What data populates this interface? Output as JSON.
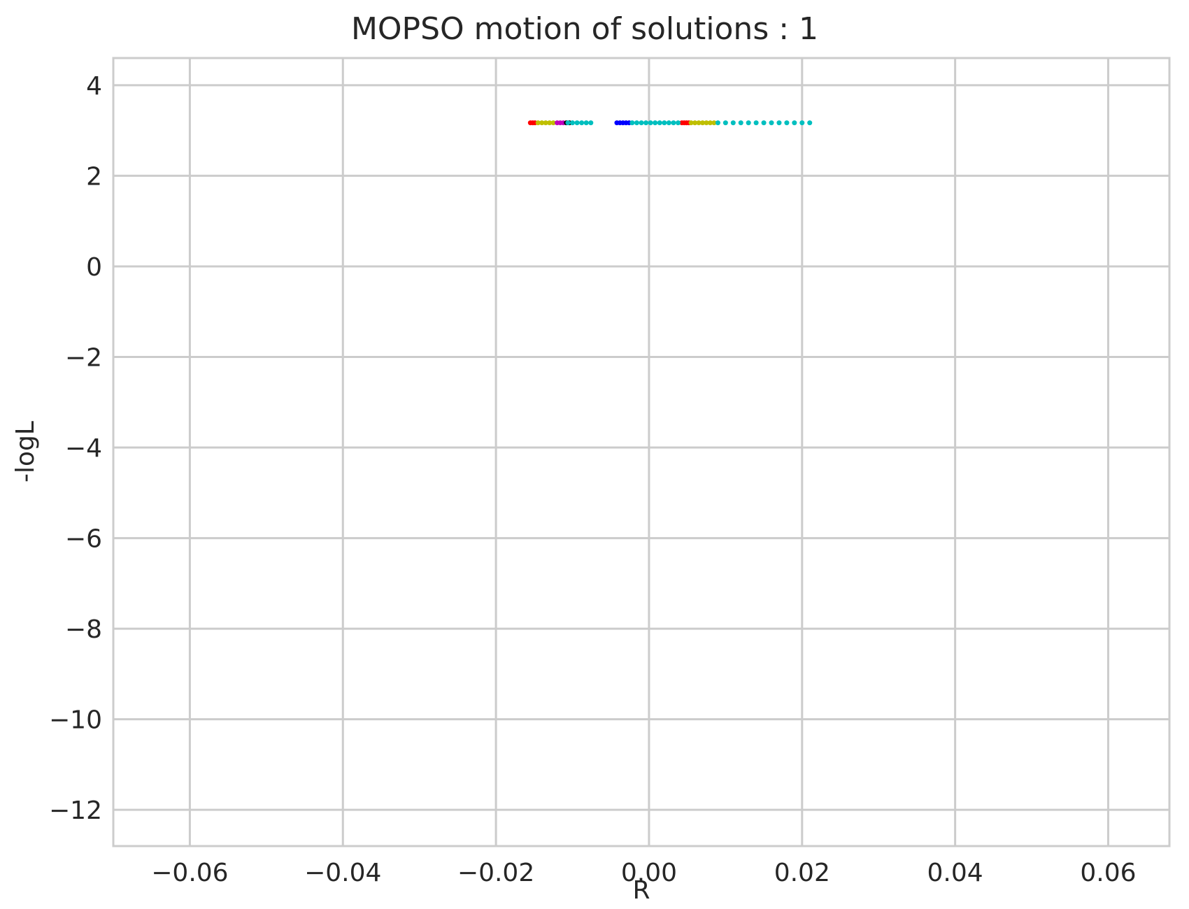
{
  "chart_data": {
    "type": "scatter",
    "title": "MOPSO motion of solutions : 1",
    "xlabel": "R",
    "ylabel": "-logL",
    "xlim": [
      -0.07,
      0.068
    ],
    "ylim": [
      -12.8,
      4.6
    ],
    "grid": true,
    "legend": "none",
    "x_ticks": [
      -0.06,
      -0.04,
      -0.02,
      0.0,
      0.02,
      0.04,
      0.06
    ],
    "x_tick_labels": [
      "−0.06",
      "−0.04",
      "−0.02",
      "0.00",
      "0.02",
      "0.04",
      "0.06"
    ],
    "y_ticks": [
      4,
      2,
      0,
      -2,
      -4,
      -6,
      -8,
      -10,
      -12
    ],
    "y_tick_labels": [
      "4",
      "2",
      "0",
      "−2",
      "−4",
      "−6",
      "−8",
      "−10",
      "−12"
    ],
    "series": [
      {
        "color": "#ff0000",
        "x": [
          -0.0155,
          -0.0152,
          -0.0149,
          0.0043,
          0.0046,
          0.0049,
          0.0052
        ],
        "y": [
          3.17,
          3.17,
          3.17,
          3.17,
          3.17,
          3.17,
          3.17
        ]
      },
      {
        "color": "#bfbf00",
        "x": [
          -0.0145,
          -0.014,
          -0.0135,
          -0.013,
          -0.0125,
          0.0055,
          0.006,
          0.0065,
          0.007,
          0.0075,
          0.008,
          0.0085
        ],
        "y": [
          3.17,
          3.17,
          3.17,
          3.17,
          3.17,
          3.17,
          3.17,
          3.17,
          3.17,
          3.17,
          3.17,
          3.17
        ]
      },
      {
        "color": "#bf00bf",
        "x": [
          -0.012,
          -0.0116,
          -0.0112
        ],
        "y": [
          3.17,
          3.17,
          3.17
        ]
      },
      {
        "color": "#000000",
        "x": [
          -0.0108,
          -0.0104
        ],
        "y": [
          3.17,
          3.17
        ]
      },
      {
        "color": "#0000ff",
        "x": [
          -0.0042,
          -0.0038,
          -0.0034,
          -0.003,
          -0.0026
        ],
        "y": [
          3.17,
          3.17,
          3.17,
          3.17,
          3.17
        ]
      },
      {
        "color": "#00bfbf",
        "x": [
          -0.0106,
          -0.01,
          -0.0094,
          -0.0088,
          -0.0082,
          -0.0076,
          -0.0022,
          -0.0016,
          -0.001,
          -0.0004,
          0.0002,
          0.0008,
          0.0014,
          0.002,
          0.0026,
          0.0032,
          0.0038,
          0.009,
          0.01,
          0.011,
          0.012,
          0.013,
          0.014,
          0.015,
          0.016,
          0.017,
          0.018,
          0.019,
          0.02,
          0.021
        ],
        "y": [
          3.17,
          3.17,
          3.17,
          3.17,
          3.17,
          3.17,
          3.17,
          3.17,
          3.17,
          3.17,
          3.17,
          3.17,
          3.17,
          3.17,
          3.17,
          3.17,
          3.17,
          3.17,
          3.17,
          3.17,
          3.17,
          3.17,
          3.17,
          3.17,
          3.17,
          3.17,
          3.17,
          3.17,
          3.17,
          3.17
        ]
      }
    ]
  }
}
